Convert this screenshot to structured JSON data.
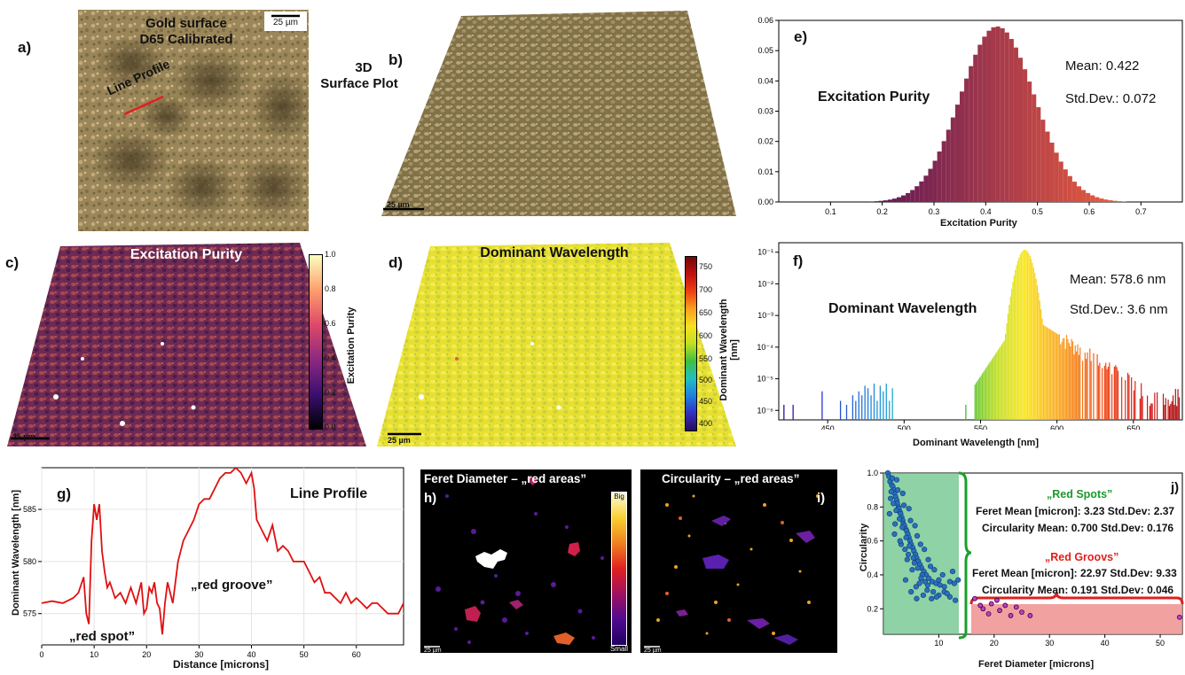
{
  "panels": {
    "a": {
      "label": "a)",
      "title_line1": "Gold surface",
      "title_line2": "D65 Calibrated",
      "scalebar": "25 µm",
      "line_label": "Line Profile"
    },
    "b": {
      "label": "b)",
      "title_line1": "3D",
      "title_line2": "Surface Plot",
      "scalebar": "25 µm"
    },
    "c": {
      "label": "c)",
      "title": "Excitation Purity",
      "scalebar": "25 µm",
      "colorbar_label": "Excitation Purity",
      "colorbar_ticks": [
        "1.0",
        "0.8",
        "0.6",
        "0.4",
        "0.2",
        "0.0"
      ]
    },
    "d": {
      "label": "d)",
      "title": "Dominant Wavelength",
      "scalebar": "25 µm",
      "colorbar_label": "Dominant Wavelength [nm]",
      "colorbar_ticks": [
        "750",
        "700",
        "650",
        "600",
        "550",
        "500",
        "450",
        "400"
      ]
    },
    "e": {
      "label": "e)",
      "title": "Excitation Purity",
      "mean": "Mean: 0.422",
      "std": "Std.Dev.: 0.072",
      "xlabel": "Excitation Purity"
    },
    "f": {
      "label": "f)",
      "title": "Dominant Wavelength",
      "mean": "Mean: 578.6 nm",
      "std": "Std.Dev.: 3.6 nm",
      "xlabel": "Dominant Wavelength [nm]"
    },
    "g": {
      "label": "g)",
      "title": "Line Profile",
      "xlabel": "Distance [microns]",
      "ylabel": "Dominant Wavelength [nm]",
      "annot_spot": "„red spot”",
      "annot_groove": "„red groove”"
    },
    "h": {
      "label": "h)",
      "title": "Feret Diameter – „red areas”",
      "scale_big": "Big",
      "scale_small": "Small",
      "scalebar": "25 µm"
    },
    "i": {
      "label": "i)",
      "title": "Circularity – „red areas”",
      "scalebar": "25 µm"
    },
    "j": {
      "label": "j)",
      "xlabel": "Feret Diameter [microns]",
      "ylabel": "Circularity",
      "spots_title": "„Red Spots”",
      "spots_feret": "Feret Mean [micron]: 3.23 Std.Dev: 2.37",
      "spots_circ": "Circularity Mean: 0.700 Std.Dev: 0.176",
      "grooves_title": "„Red Groovs”",
      "grooves_feret": "Feret Mean [micron]: 22.97 Std.Dev: 9.33",
      "grooves_circ": "Circularity Mean: 0.191 Std.Dev: 0.046"
    }
  },
  "colors": {
    "red": "#e01010",
    "green_text": "#1a9a2a",
    "red_text": "#e0201a"
  },
  "chart_data": [
    {
      "id": "e",
      "type": "bar",
      "xlabel": "Excitation Purity",
      "xlim": [
        0.0,
        0.78
      ],
      "ylim": [
        0,
        0.06
      ],
      "xticks": [
        "0.1",
        "0.2",
        "0.3",
        "0.4",
        "0.5",
        "0.6",
        "0.7"
      ],
      "yticks": [
        "0.00",
        "0.01",
        "0.02",
        "0.03",
        "0.04",
        "0.05",
        "0.06"
      ],
      "distribution": {
        "mean": 0.422,
        "std": 0.072,
        "peak": 0.058
      }
    },
    {
      "id": "f",
      "type": "bar",
      "xlabel": "Dominant Wavelength [nm]",
      "xlim": [
        418,
        682
      ],
      "yscale": "log",
      "xticks": [
        "450",
        "500",
        "550",
        "600",
        "650"
      ],
      "yticks": [
        "10⁻¹",
        "10⁻²",
        "10⁻³",
        "10⁻⁴",
        "10⁻⁵",
        "10⁻⁶"
      ],
      "distribution": {
        "mean": 578.6,
        "std": 3.6,
        "peak": 0.12
      }
    },
    {
      "id": "g",
      "type": "line",
      "xlabel": "Distance [microns]",
      "ylabel": "Dominant Wavelength [nm]",
      "xlim": [
        0,
        69
      ],
      "ylim": [
        572,
        589
      ],
      "xticks": [
        "0",
        "10",
        "20",
        "30",
        "40",
        "50",
        "60"
      ],
      "yticks": [
        "575",
        "580",
        "585"
      ],
      "x": [
        0,
        2,
        4,
        6,
        7,
        8,
        8.5,
        9,
        9.5,
        10,
        10.5,
        11,
        11.5,
        12,
        12.5,
        13,
        14,
        15,
        16,
        17,
        18,
        19,
        19.5,
        20,
        20.5,
        21,
        21.5,
        22,
        22.5,
        23,
        23.5,
        24,
        25,
        26,
        27,
        28,
        29,
        30,
        31,
        32,
        33,
        34,
        35,
        36,
        37,
        38,
        39,
        40,
        40.5,
        41,
        42,
        43,
        44,
        45,
        46,
        47,
        48,
        49,
        50,
        51,
        52,
        53,
        54,
        55,
        56,
        57,
        58,
        59,
        60,
        61,
        62,
        63,
        64,
        65,
        66,
        67,
        68,
        69
      ],
      "y": [
        576,
        576.2,
        576,
        576.5,
        577,
        578.5,
        575,
        574,
        582,
        585.5,
        584,
        585.5,
        581,
        579,
        577.5,
        578,
        576.5,
        577,
        576,
        577.5,
        576,
        578,
        575,
        575.5,
        577.5,
        577,
        578,
        576,
        575.5,
        573,
        576,
        578,
        576,
        580,
        582,
        583,
        584,
        585.5,
        586,
        586,
        587,
        588,
        588.5,
        588.5,
        589,
        588.5,
        587.5,
        588.5,
        587,
        584,
        583,
        582,
        583.5,
        581,
        581.5,
        581,
        580,
        580,
        580,
        579,
        578,
        578.5,
        577,
        577,
        576.5,
        576,
        577,
        576,
        576.5,
        576,
        575.5,
        576,
        576,
        575.5,
        575,
        575,
        575,
        576
      ]
    },
    {
      "id": "j",
      "type": "scatter",
      "xlabel": "Feret Diameter [microns]",
      "ylabel": "Circularity",
      "xlim": [
        0,
        54
      ],
      "ylim": [
        0.05,
        1.0
      ],
      "xticks": [
        "10",
        "20",
        "30",
        "40",
        "50"
      ],
      "yticks": [
        "0.2",
        "0.4",
        "0.6",
        "0.8",
        "1.0"
      ],
      "series": [
        {
          "points": [
            [
              0.8,
              1.0
            ],
            [
              1.0,
              0.98
            ],
            [
              1.2,
              0.95
            ],
            [
              1.5,
              0.93
            ],
            [
              1.7,
              0.92
            ],
            [
              1.9,
              0.9
            ],
            [
              2.0,
              0.88
            ],
            [
              2.2,
              0.86
            ],
            [
              2.4,
              0.84
            ],
            [
              2.5,
              0.82
            ],
            [
              2.7,
              0.8
            ],
            [
              2.8,
              0.79
            ],
            [
              3.0,
              0.77
            ],
            [
              3.1,
              0.76
            ],
            [
              3.3,
              0.74
            ],
            [
              3.5,
              0.72
            ],
            [
              3.6,
              0.7
            ],
            [
              3.8,
              0.69
            ],
            [
              4.0,
              0.67
            ],
            [
              4.2,
              0.66
            ],
            [
              4.4,
              0.64
            ],
            [
              4.6,
              0.62
            ],
            [
              4.8,
              0.6
            ],
            [
              5.0,
              0.58
            ],
            [
              5.3,
              0.56
            ],
            [
              5.5,
              0.54
            ],
            [
              5.8,
              0.52
            ],
            [
              6.0,
              0.5
            ],
            [
              6.3,
              0.48
            ],
            [
              6.6,
              0.46
            ],
            [
              6.9,
              0.44
            ],
            [
              7.3,
              0.42
            ],
            [
              7.7,
              0.4
            ],
            [
              8.2,
              0.38
            ],
            [
              8.8,
              0.36
            ],
            [
              9.5,
              0.35
            ],
            [
              10.2,
              0.34
            ],
            [
              11,
              0.33
            ],
            [
              12,
              0.36
            ],
            [
              12.8,
              0.35
            ],
            [
              13.5,
              0.37
            ],
            [
              1.3,
              0.85
            ],
            [
              1.8,
              0.82
            ],
            [
              2.3,
              0.78
            ],
            [
              2.9,
              0.73
            ],
            [
              3.4,
              0.68
            ],
            [
              4.1,
              0.62
            ],
            [
              4.7,
              0.57
            ],
            [
              5.4,
              0.5
            ],
            [
              6.2,
              0.44
            ],
            [
              7.0,
              0.4
            ],
            [
              8.0,
              0.34
            ],
            [
              9.0,
              0.3
            ],
            [
              10,
              0.28
            ],
            [
              11,
              0.3
            ],
            [
              12,
              0.27
            ],
            [
              13,
              0.25
            ],
            [
              3.2,
              0.58
            ],
            [
              4.5,
              0.52
            ],
            [
              5.6,
              0.47
            ],
            [
              6.8,
              0.38
            ],
            [
              7.9,
              0.31
            ],
            [
              9.6,
              0.27
            ],
            [
              1.6,
              0.97
            ],
            [
              2.6,
              0.9
            ],
            [
              3.7,
              0.81
            ],
            [
              4.9,
              0.72
            ],
            [
              6.1,
              0.63
            ],
            [
              7.4,
              0.55
            ],
            [
              8.5,
              0.45
            ],
            [
              1.1,
              0.76
            ],
            [
              2.1,
              0.7
            ],
            [
              3.9,
              0.55
            ],
            [
              5.2,
              0.43
            ],
            [
              6.5,
              0.35
            ],
            [
              7.2,
              0.28
            ],
            [
              8.7,
              0.26
            ],
            [
              10.7,
              0.4
            ],
            [
              12.5,
              0.42
            ],
            [
              2.0,
              0.64
            ],
            [
              3.0,
              0.6
            ],
            [
              4.3,
              0.49
            ],
            [
              5.9,
              0.33
            ],
            [
              4.0,
              0.37
            ],
            [
              5.0,
              0.3
            ],
            [
              6.0,
              0.26
            ],
            [
              7.5,
              0.36
            ],
            [
              9.2,
              0.43
            ],
            [
              1.4,
              0.89
            ],
            [
              2.4,
              0.96
            ],
            [
              3.5,
              0.88
            ],
            [
              4.6,
              0.79
            ],
            [
              5.7,
              0.69
            ],
            [
              6.7,
              0.58
            ],
            [
              8.1,
              0.49
            ],
            [
              10.0,
              0.37
            ],
            [
              11.5,
              0.29
            ]
          ]
        },
        {
          "points": [
            [
              16.5,
              0.26
            ],
            [
              17.5,
              0.22
            ],
            [
              18.0,
              0.2
            ],
            [
              19.0,
              0.17
            ],
            [
              19.5,
              0.23
            ],
            [
              20.5,
              0.25
            ],
            [
              21.0,
              0.19
            ],
            [
              22.0,
              0.22
            ],
            [
              23.0,
              0.16
            ],
            [
              24.0,
              0.21
            ],
            [
              25.0,
              0.18
            ],
            [
              26.5,
              0.16
            ],
            [
              53.5,
              0.15
            ]
          ]
        }
      ]
    }
  ]
}
